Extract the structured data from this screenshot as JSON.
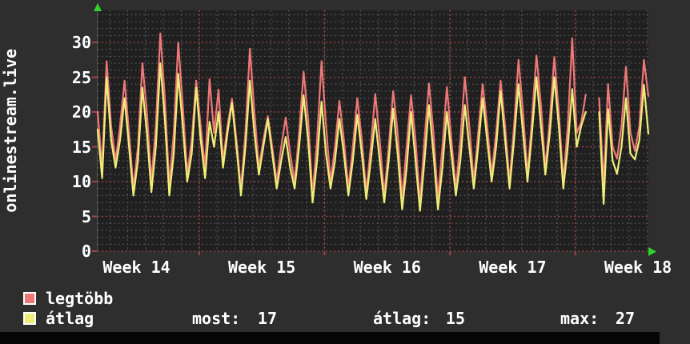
{
  "title": {
    "vertical_label": "onlinestream.live"
  },
  "legend": {
    "items": [
      {
        "label": "legtöbb",
        "color": "#ee7777"
      },
      {
        "label": "átlag",
        "color": "#eeee77"
      }
    ]
  },
  "stats": [
    {
      "label": "most:",
      "value": "17"
    },
    {
      "label": "átlag:",
      "value": "15"
    },
    {
      "label": "max:",
      "value": "27"
    }
  ],
  "colors": {
    "outer_background": "#2e2e2e",
    "plot_background": "#202020",
    "minor_grid": "#545454",
    "major_grid_red": "#964444",
    "tick_red": "#a64444",
    "axis_gray": "#5a5a5a",
    "arrow_green": "#2fd42f",
    "text": "#ffffff",
    "bottom_bar": "#060606",
    "series_max": "#ee7777",
    "series_avg": "#eeee77"
  },
  "chart_data": {
    "type": "line",
    "title": "onlinestream.live",
    "xlabel": "",
    "ylabel": "onlinestream.live",
    "ylim": [
      0,
      34.6
    ],
    "y_ticks": [
      0,
      5,
      10,
      15,
      20,
      25,
      30
    ],
    "y_minor_step": 1,
    "x_range_days": 30.75,
    "samples_per_day": 4,
    "week_boundaries_days": [
      5.67,
      12.67,
      19.67,
      26.67
    ],
    "x_tick_labels": [
      {
        "label": "Week 14",
        "center_day": 2.17
      },
      {
        "label": "Week 15",
        "center_day": 9.17
      },
      {
        "label": "Week 16",
        "center_day": 16.17
      },
      {
        "label": "Week 17",
        "center_day": 23.17
      },
      {
        "label": "Week 18",
        "center_day": 30.17
      }
    ],
    "legend_position": "bottom-left",
    "grid": true,
    "gap_note": "null = missing data (gap near end of Week 17)",
    "series": [
      {
        "name": "legtöbb",
        "color": "#ee7777",
        "values": [
          20,
          12,
          27.3,
          18,
          13,
          18,
          24.5,
          17,
          9,
          15,
          27,
          20,
          10,
          18,
          31.3,
          22,
          9.5,
          17,
          30,
          21,
          11,
          16,
          24.5,
          18,
          12,
          24.7,
          17,
          23.2,
          13,
          18,
          21.9,
          16,
          9,
          17,
          29.1,
          20,
          12,
          16,
          19.4,
          15,
          10,
          15,
          19.2,
          14,
          10,
          17,
          25.8,
          19,
          8,
          16,
          27.3,
          18,
          10,
          15,
          21.6,
          16,
          9,
          15,
          22,
          16,
          8.5,
          15,
          22.6,
          16,
          8,
          15,
          23,
          17,
          7.5,
          15,
          22.4,
          16,
          7,
          16,
          24.1,
          17,
          7.5,
          15,
          23.6,
          16,
          9,
          16,
          25,
          18,
          10,
          17,
          24,
          18,
          11,
          17,
          24.5,
          18,
          10,
          18,
          27.5,
          20,
          11,
          19,
          28.1,
          21,
          12,
          19,
          27.9,
          20,
          10,
          18,
          30.6,
          17,
          18.5,
          22.5,
          null,
          null,
          22,
          9.5,
          24,
          15,
          13.3,
          18,
          26.5,
          17,
          14.4,
          18,
          27.5,
          22.3
        ]
      },
      {
        "name": "átlag",
        "color": "#eeee77",
        "values": [
          17.5,
          10.5,
          25,
          16,
          12,
          16,
          22,
          15,
          8,
          13,
          23.5,
          17,
          8.5,
          15,
          27,
          19,
          8,
          14,
          25.5,
          18,
          10,
          14,
          23.5,
          16,
          10.5,
          18.6,
          15,
          20,
          12,
          17,
          21.3,
          15,
          8,
          15,
          24.5,
          17,
          11,
          15,
          19,
          14,
          9,
          13,
          16.4,
          12,
          9,
          15,
          22.4,
          16,
          7,
          13,
          21.5,
          14,
          9,
          13,
          19,
          14,
          8,
          13,
          19.6,
          14,
          7.5,
          13,
          19,
          13,
          7,
          13,
          20.5,
          14,
          6,
          12,
          20,
          13,
          5.8,
          13,
          21,
          14,
          6,
          12,
          20,
          14,
          8,
          13,
          21,
          15,
          9,
          15,
          22,
          16,
          10,
          15,
          23,
          16,
          9,
          16,
          24,
          17,
          10,
          17,
          25,
          18,
          11,
          17,
          25,
          18,
          9,
          15,
          23.3,
          15,
          18,
          20,
          null,
          null,
          20,
          6.8,
          20.4,
          13,
          11.1,
          15,
          22,
          14,
          13.2,
          16,
          23.9,
          16.9
        ]
      }
    ]
  }
}
